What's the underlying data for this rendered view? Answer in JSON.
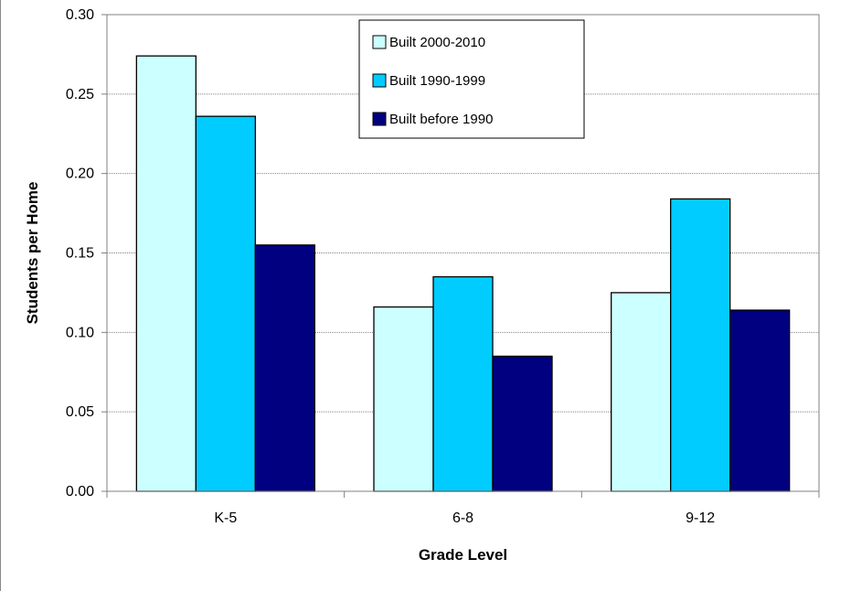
{
  "chart_data": {
    "type": "bar",
    "title": "",
    "xlabel": "Grade Level",
    "ylabel": "Students per Home",
    "categories": [
      "K-5",
      "6-8",
      "9-12"
    ],
    "series": [
      {
        "name": "Built 2000-2010",
        "values": [
          0.274,
          0.116,
          0.125
        ],
        "color": "#ccffff"
      },
      {
        "name": "Built 1990-1999",
        "values": [
          0.236,
          0.135,
          0.184
        ],
        "color": "#00ccff"
      },
      {
        "name": "Built before 1990",
        "values": [
          0.155,
          0.085,
          0.114
        ],
        "color": "#000080"
      }
    ],
    "ylim": [
      0,
      0.3
    ],
    "yticks": [
      "0.00",
      "0.05",
      "0.10",
      "0.15",
      "0.20",
      "0.25",
      "0.30"
    ],
    "grid": true,
    "legend_position": "top-center"
  }
}
